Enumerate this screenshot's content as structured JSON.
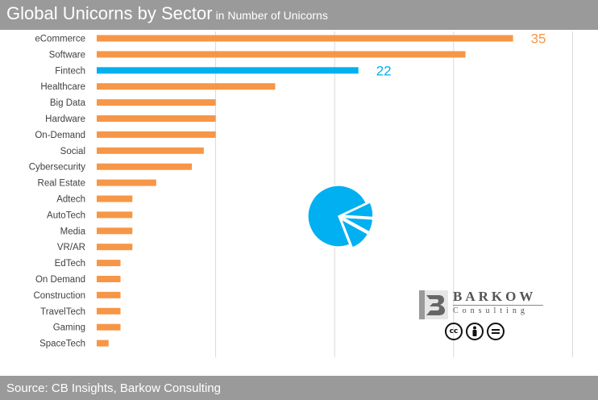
{
  "header": {
    "title": "Global Unicorns by Sector",
    "subtitle": "in Number of Unicorns"
  },
  "footer": {
    "source": "Source: CB Insights, Barkow Consulting"
  },
  "logo": {
    "word": "BARKOW",
    "sub": "Consulting",
    "license_badges": [
      "cc-icon",
      "person-icon",
      "equals-icon"
    ]
  },
  "colors": {
    "bar": "#F79646",
    "highlight": "#00B0F0",
    "grid": "#d9d9d9",
    "text": "#404040"
  },
  "chart_data": {
    "type": "bar",
    "orientation": "horizontal",
    "categories": [
      "eCommerce",
      "Software",
      "Fintech",
      "Healthcare",
      "Big Data",
      "Hardware",
      "On-Demand",
      "Social",
      "Cybersecurity",
      "Real Estate",
      "Adtech",
      "AutoTech",
      "Media",
      "VR/AR",
      "EdTech",
      "On Demand",
      "Construction",
      "TravelTech",
      "Gaming",
      "SpaceTech"
    ],
    "values": [
      35,
      31,
      22,
      15,
      10,
      10,
      10,
      9,
      8,
      5,
      3,
      3,
      3,
      3,
      2,
      2,
      2,
      2,
      2,
      1
    ],
    "highlight_index": 2,
    "data_labels": [
      {
        "category": "eCommerce",
        "text": "35"
      },
      {
        "category": "Fintech",
        "text": "22"
      }
    ],
    "xlim": [
      0,
      40
    ],
    "grid": true,
    "inset_pie": {
      "slices": [
        0.74,
        0.08,
        0.07,
        0.11
      ],
      "exploded": true
    }
  }
}
